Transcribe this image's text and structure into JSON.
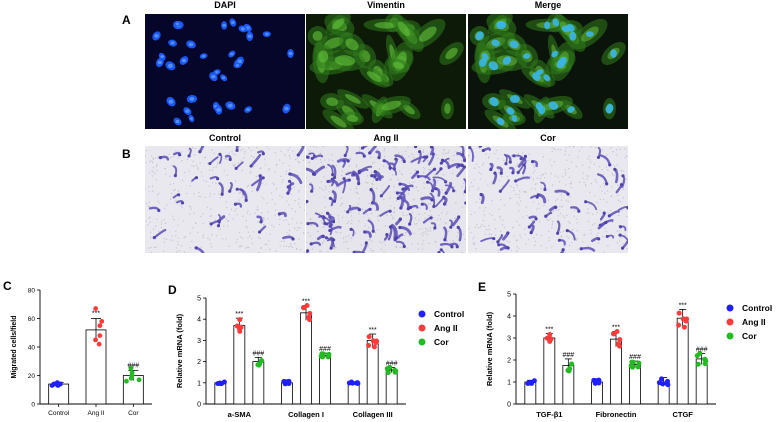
{
  "panels": {
    "A": {
      "label": "A",
      "titles": [
        "DAPI",
        "Vimentin",
        "Merge"
      ]
    },
    "B": {
      "label": "B",
      "titles": [
        "Control",
        "Ang II",
        "Cor"
      ]
    }
  },
  "chart_data": [
    {
      "panel": "C",
      "type": "bar",
      "ylabel": "Migrated cells/field",
      "categories": [
        "Control",
        "Ang II",
        "Cor"
      ],
      "values": [
        14,
        52,
        20
      ],
      "errors": [
        1.2,
        8,
        3.5
      ],
      "points": [
        [
          13,
          14,
          14,
          15,
          14,
          13
        ],
        [
          42,
          67,
          48,
          58,
          55,
          45
        ],
        [
          16,
          25,
          18,
          22,
          20,
          17
        ]
      ],
      "yticks": [
        "0",
        "20",
        "40",
        "60",
        "80"
      ],
      "ylim": [
        0,
        80
      ],
      "annotations": [
        "",
        "***",
        "###"
      ],
      "colors": [
        "#2020ff",
        "#ff3b3b",
        "#22bb22"
      ]
    },
    {
      "panel": "D",
      "type": "bar",
      "ylabel": "Relative mRNA (fold)",
      "categories": [
        "a-SMA",
        "Collagen I",
        "Collagen III"
      ],
      "series": [
        {
          "name": "Control",
          "values": [
            1.0,
            1.0,
            1.0
          ],
          "errors": [
            0.05,
            0.08,
            0.05
          ]
        },
        {
          "name": "Ang II",
          "values": [
            3.7,
            4.3,
            3.0
          ],
          "errors": [
            0.35,
            0.35,
            0.3
          ]
        },
        {
          "name": "Cor",
          "values": [
            2.0,
            2.3,
            1.6
          ],
          "errors": [
            0.2,
            0.1,
            0.12
          ]
        }
      ],
      "annotations": [
        [
          "",
          "***",
          "###"
        ],
        [
          "",
          "***",
          "###"
        ],
        [
          "",
          "***",
          "###"
        ]
      ],
      "yticks": [
        "0",
        "1",
        "2",
        "3",
        "4",
        "5"
      ],
      "ylim": [
        0,
        5
      ],
      "legend": "right",
      "colors": [
        "#2020ff",
        "#ff3b3b",
        "#22bb22"
      ]
    },
    {
      "panel": "E",
      "type": "bar",
      "ylabel": "Relative mRNA (fold)",
      "categories": [
        "TGF-β1",
        "Fibronectin",
        "CTGF"
      ],
      "series": [
        {
          "name": "Control",
          "values": [
            1.0,
            1.0,
            1.0
          ],
          "errors": [
            0.08,
            0.1,
            0.2
          ]
        },
        {
          "name": "Ang II",
          "values": [
            3.0,
            2.95,
            3.9
          ],
          "errors": [
            0.2,
            0.35,
            0.4
          ]
        },
        {
          "name": "Cor",
          "values": [
            1.75,
            1.8,
            2.05
          ],
          "errors": [
            0.3,
            0.15,
            0.25
          ]
        }
      ],
      "annotations": [
        [
          "",
          "***",
          "###"
        ],
        [
          "",
          "***",
          "###"
        ],
        [
          "",
          "***",
          "###"
        ]
      ],
      "yticks": [
        "0",
        "1",
        "2",
        "3",
        "4",
        "5"
      ],
      "ylim": [
        0,
        5
      ],
      "legend": "right",
      "colors": [
        "#2020ff",
        "#ff3b3b",
        "#22bb22"
      ]
    }
  ],
  "chart_panel_labels": [
    "C",
    "D",
    "E"
  ]
}
